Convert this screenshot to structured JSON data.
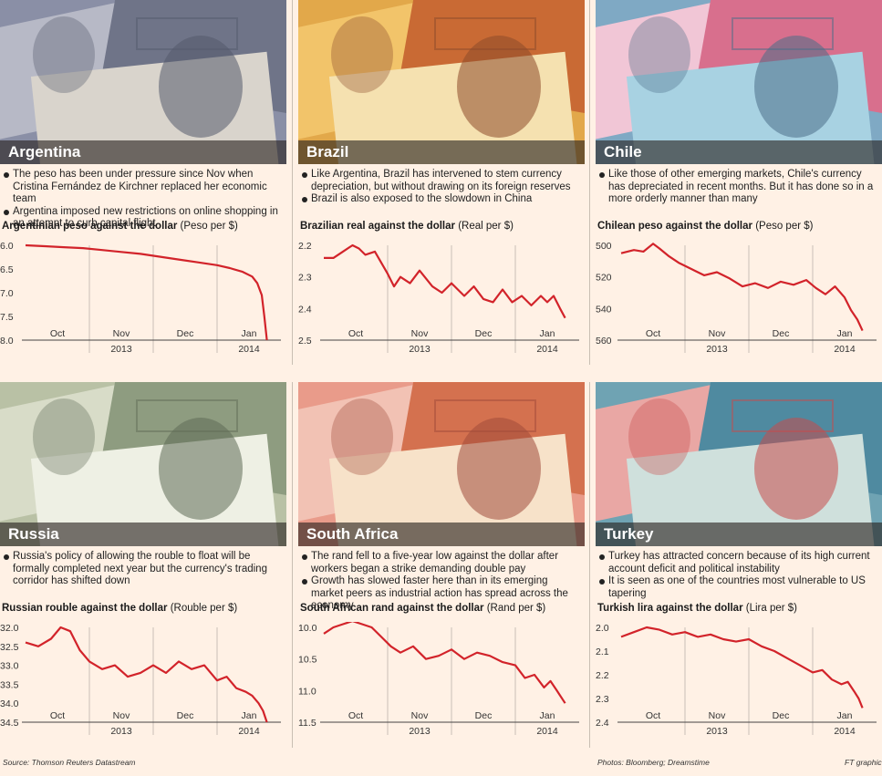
{
  "footer": {
    "source": "Source: Thomson Reuters Datastream",
    "photos": "Photos: Bloomberg; Dreamstime",
    "credit": "FT graphic"
  },
  "colors": {
    "line": "#d2232a",
    "background": "#fff1e5",
    "grid": "#c8c0b6"
  },
  "panels": [
    {
      "country": "Argentina",
      "photo_icon": "peso-banknotes",
      "bullets": [
        "The peso has been under pressure since Nov when Cristina Fernández de Kirchner replaced her economic team",
        "Argentina imposed new restrictions on online shopping in an attempt to curb capital flight"
      ],
      "chart_title": "Argentinian peso against the dollar",
      "chart_unit": "(Peso per $)"
    },
    {
      "country": "Brazil",
      "photo_icon": "reais-banknotes",
      "bullets": [
        "Like Argentina, Brazil has intervened to stem currency depreciation, but without drawing on its foreign reserves",
        "Brazil is also exposed to the slowdown in China"
      ],
      "chart_title": "Brazilian real against the dollar",
      "chart_unit": "(Real per $)"
    },
    {
      "country": "Chile",
      "photo_icon": "chilean-peso-banknotes",
      "bullets": [
        "Like those of other emerging markets, Chile's currency has depreciated in recent months. But it has done so in a more orderly manner than many"
      ],
      "chart_title": "Chilean peso against the dollar",
      "chart_unit": "(Peso per $)"
    },
    {
      "country": "Russia",
      "photo_icon": "rouble-banknotes",
      "bullets": [
        "Russia's policy of allowing the rouble to float will be formally completed next year but the currency's trading corridor has shifted down"
      ],
      "chart_title": "Russian rouble against the dollar",
      "chart_unit": "(Rouble per $)"
    },
    {
      "country": "South Africa",
      "photo_icon": "rand-banknotes",
      "bullets": [
        "The rand fell to a five-year low against the dollar after workers began a strike demanding double pay",
        "Growth has slowed faster here than in its emerging market peers as industrial action has spread across the economy"
      ],
      "chart_title": "South African rand against the dollar",
      "chart_unit": "(Rand per $)"
    },
    {
      "country": "Turkey",
      "photo_icon": "lira-banknotes",
      "bullets": [
        "Turkey has attracted concern because of its high current account deficit and political instability",
        "It is seen as one of the countries most vulnerable to US tapering"
      ],
      "chart_title": "Turkish lira against the dollar",
      "chart_unit": "(Lira per $)"
    }
  ],
  "chart_data": [
    {
      "type": "line",
      "title": "Argentinian peso against the dollar",
      "ylabel": "Peso per $",
      "y_inverted": true,
      "ylim": [
        6.0,
        8.0
      ],
      "yticks": [
        "6.0",
        "6.5",
        "7.0",
        "7.5",
        "8.0"
      ],
      "xlim": [
        0,
        4
      ],
      "month_ticks": [
        "Oct",
        "Nov",
        "Dec",
        "Jan"
      ],
      "year_ticks": [
        "2013",
        "2014"
      ],
      "grid": "vertical",
      "x": [
        0.0,
        0.3,
        0.6,
        0.9,
        1.2,
        1.5,
        1.8,
        2.1,
        2.4,
        2.7,
        3.0,
        3.2,
        3.4,
        3.55,
        3.63,
        3.7,
        3.74,
        3.78
      ],
      "values": [
        6.0,
        6.02,
        6.04,
        6.06,
        6.1,
        6.14,
        6.18,
        6.24,
        6.3,
        6.36,
        6.42,
        6.48,
        6.56,
        6.66,
        6.8,
        7.05,
        7.5,
        8.0
      ]
    },
    {
      "type": "line",
      "title": "Brazilian real against the dollar",
      "ylabel": "Real per $",
      "y_inverted": true,
      "ylim": [
        2.2,
        2.5
      ],
      "yticks": [
        "2.2",
        "2.3",
        "2.4",
        "2.5"
      ],
      "xlim": [
        0,
        4
      ],
      "month_ticks": [
        "Oct",
        "Nov",
        "Dec",
        "Jan"
      ],
      "year_ticks": [
        "2013",
        "2014"
      ],
      "grid": "vertical",
      "x": [
        0.0,
        0.15,
        0.3,
        0.45,
        0.55,
        0.65,
        0.8,
        1.0,
        1.1,
        1.2,
        1.35,
        1.5,
        1.7,
        1.85,
        2.0,
        2.2,
        2.35,
        2.5,
        2.65,
        2.8,
        2.95,
        3.1,
        3.25,
        3.4,
        3.5,
        3.6,
        3.7,
        3.78
      ],
      "values": [
        2.24,
        2.24,
        2.22,
        2.2,
        2.21,
        2.23,
        2.22,
        2.29,
        2.33,
        2.3,
        2.32,
        2.28,
        2.33,
        2.35,
        2.32,
        2.36,
        2.33,
        2.37,
        2.38,
        2.34,
        2.38,
        2.36,
        2.39,
        2.36,
        2.38,
        2.36,
        2.4,
        2.43
      ]
    },
    {
      "type": "line",
      "title": "Chilean peso against the dollar",
      "ylabel": "Peso per $",
      "y_inverted": true,
      "ylim": [
        500,
        560
      ],
      "yticks": [
        "500",
        "520",
        "540",
        "560"
      ],
      "xlim": [
        0,
        4
      ],
      "month_ticks": [
        "Oct",
        "Nov",
        "Dec",
        "Jan"
      ],
      "year_ticks": [
        "2013",
        "2014"
      ],
      "grid": "vertical",
      "x": [
        0.0,
        0.2,
        0.35,
        0.5,
        0.6,
        0.75,
        0.9,
        1.1,
        1.3,
        1.5,
        1.7,
        1.9,
        2.1,
        2.3,
        2.5,
        2.7,
        2.9,
        3.05,
        3.2,
        3.35,
        3.5,
        3.6,
        3.7,
        3.78
      ],
      "values": [
        505,
        503,
        504,
        499,
        502,
        507,
        511,
        515,
        519,
        517,
        521,
        526,
        524,
        527,
        523,
        525,
        522,
        527,
        531,
        526,
        533,
        541,
        547,
        554
      ]
    },
    {
      "type": "line",
      "title": "Russian rouble against the dollar",
      "ylabel": "Rouble per $",
      "y_inverted": true,
      "ylim": [
        32.0,
        34.5
      ],
      "yticks": [
        "32.0",
        "32.5",
        "33.0",
        "33.5",
        "34.0",
        "34.5"
      ],
      "xlim": [
        0,
        4
      ],
      "month_ticks": [
        "Oct",
        "Nov",
        "Dec",
        "Jan"
      ],
      "year_ticks": [
        "2013",
        "2014"
      ],
      "grid": "vertical",
      "x": [
        0.0,
        0.2,
        0.4,
        0.55,
        0.7,
        0.85,
        1.0,
        1.2,
        1.4,
        1.6,
        1.8,
        2.0,
        2.2,
        2.4,
        2.6,
        2.8,
        3.0,
        3.15,
        3.3,
        3.45,
        3.55,
        3.65,
        3.72,
        3.78
      ],
      "values": [
        32.4,
        32.5,
        32.3,
        32.0,
        32.1,
        32.6,
        32.9,
        33.1,
        33.0,
        33.3,
        33.2,
        33.0,
        33.2,
        32.9,
        33.1,
        33.0,
        33.4,
        33.3,
        33.6,
        33.7,
        33.8,
        34.0,
        34.2,
        34.5
      ]
    },
    {
      "type": "line",
      "title": "South African rand against the dollar",
      "ylabel": "Rand per $",
      "y_inverted": true,
      "ylim": [
        10.0,
        11.5
      ],
      "yticks": [
        "10.0",
        "10.5",
        "11.0",
        "11.5"
      ],
      "xlim": [
        0,
        4
      ],
      "month_ticks": [
        "Oct",
        "Nov",
        "Dec",
        "Jan"
      ],
      "year_ticks": [
        "2013",
        "2014"
      ],
      "grid": "vertical",
      "x": [
        0.0,
        0.15,
        0.3,
        0.45,
        0.6,
        0.75,
        0.9,
        1.05,
        1.2,
        1.4,
        1.6,
        1.8,
        2.0,
        2.2,
        2.4,
        2.6,
        2.8,
        3.0,
        3.15,
        3.3,
        3.45,
        3.55,
        3.65,
        3.78
      ],
      "values": [
        10.1,
        10.0,
        9.95,
        9.9,
        9.95,
        10.0,
        10.15,
        10.3,
        10.4,
        10.3,
        10.5,
        10.45,
        10.35,
        10.5,
        10.4,
        10.45,
        10.55,
        10.6,
        10.8,
        10.75,
        10.95,
        10.85,
        11.0,
        11.2
      ]
    },
    {
      "type": "line",
      "title": "Turkish lira against the dollar",
      "ylabel": "Lira per $",
      "y_inverted": true,
      "ylim": [
        2.0,
        2.4
      ],
      "yticks": [
        "2.0",
        "2.1",
        "2.2",
        "2.3",
        "2.4"
      ],
      "xlim": [
        0,
        4
      ],
      "month_ticks": [
        "Oct",
        "Nov",
        "Dec",
        "Jan"
      ],
      "year_ticks": [
        "2013",
        "2014"
      ],
      "grid": "vertical",
      "x": [
        0.0,
        0.2,
        0.4,
        0.6,
        0.8,
        1.0,
        1.2,
        1.4,
        1.6,
        1.8,
        2.0,
        2.2,
        2.4,
        2.6,
        2.8,
        3.0,
        3.15,
        3.3,
        3.45,
        3.55,
        3.65,
        3.72,
        3.78
      ],
      "values": [
        2.04,
        2.02,
        2.0,
        2.01,
        2.03,
        2.02,
        2.04,
        2.03,
        2.05,
        2.06,
        2.05,
        2.08,
        2.1,
        2.13,
        2.16,
        2.19,
        2.18,
        2.22,
        2.24,
        2.23,
        2.27,
        2.3,
        2.34
      ]
    }
  ]
}
